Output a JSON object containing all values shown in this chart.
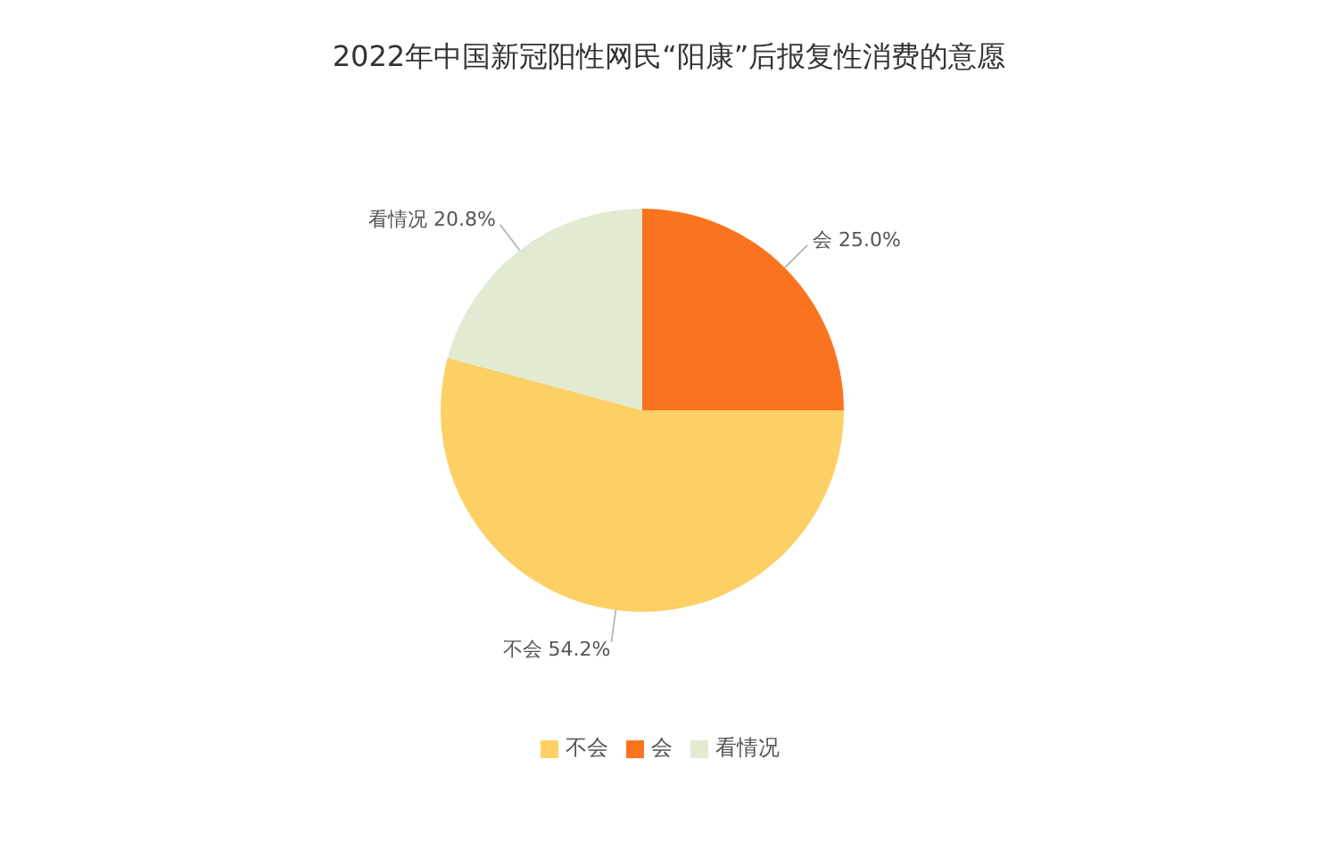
{
  "chart_data": {
    "type": "pie",
    "title": "2022年中国新冠阳性网民“阳康”后报复性消费的意愿",
    "categories": [
      "会",
      "不会",
      "看情况"
    ],
    "values": [
      25,
      54.2,
      20.8
    ],
    "value_labels": [
      "25.0%",
      "54.2%",
      "20.8%"
    ],
    "colors": [
      "#fa741f",
      "#fdd066",
      "#e2ebd1"
    ],
    "legend": "bottom"
  }
}
